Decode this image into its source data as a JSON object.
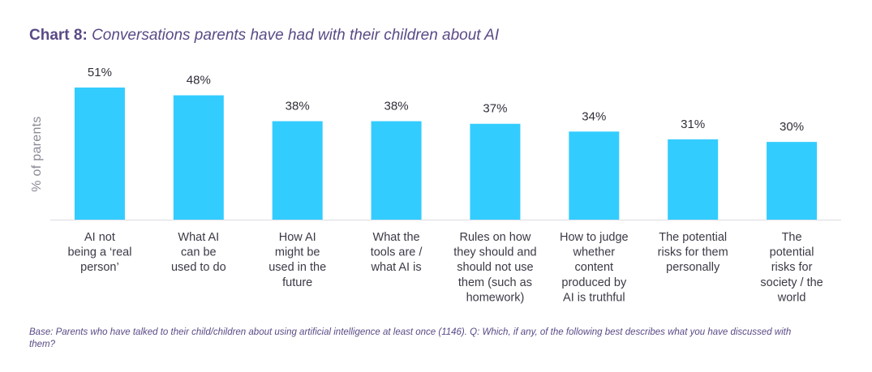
{
  "title": {
    "prefix": "Chart 8:",
    "text": "Conversations parents have had with their children about AI"
  },
  "footnote": "Base: Parents who have talked to their child/children about using artificial intelligence at least once (1146). Q: Which, if any, of the following best describes what you have discussed with them?",
  "colors": {
    "bar": "#33ccff",
    "title": "#5a4a86",
    "baseline": "#dcdce4"
  },
  "chart_data": {
    "type": "bar",
    "ylabel": "% of parents",
    "xlabel": "",
    "ylim": [
      0,
      51
    ],
    "grid": false,
    "categories": [
      "AI not being a ‘real person’",
      "What AI can be used to do",
      "How AI might be used in the future",
      "What the tools are / what AI is",
      "Rules on how they should and should not use them (such as homework)",
      "How to judge whether content produced by AI is truthful",
      "The potential risks for them personally",
      "The potential risks for society / the world"
    ],
    "category_lines": [
      [
        "AI not",
        "being a ‘real",
        "person’"
      ],
      [
        "What AI",
        "can be",
        "used to do"
      ],
      [
        "How AI",
        "might be",
        "used in the",
        "future"
      ],
      [
        "What the",
        "tools are /",
        "what AI is"
      ],
      [
        "Rules on how",
        "they should and",
        "should not use",
        "them (such as",
        "homework)"
      ],
      [
        "How to judge",
        "whether",
        "content",
        "produced by",
        "AI is truthful"
      ],
      [
        "The potential",
        "risks for them",
        "personally"
      ],
      [
        "The",
        "potential",
        "risks for",
        "society / the",
        "world"
      ]
    ],
    "values": [
      51,
      48,
      38,
      38,
      37,
      34,
      31,
      30
    ],
    "value_labels": [
      "51%",
      "48%",
      "38%",
      "38%",
      "37%",
      "34%",
      "31%",
      "30%"
    ]
  }
}
